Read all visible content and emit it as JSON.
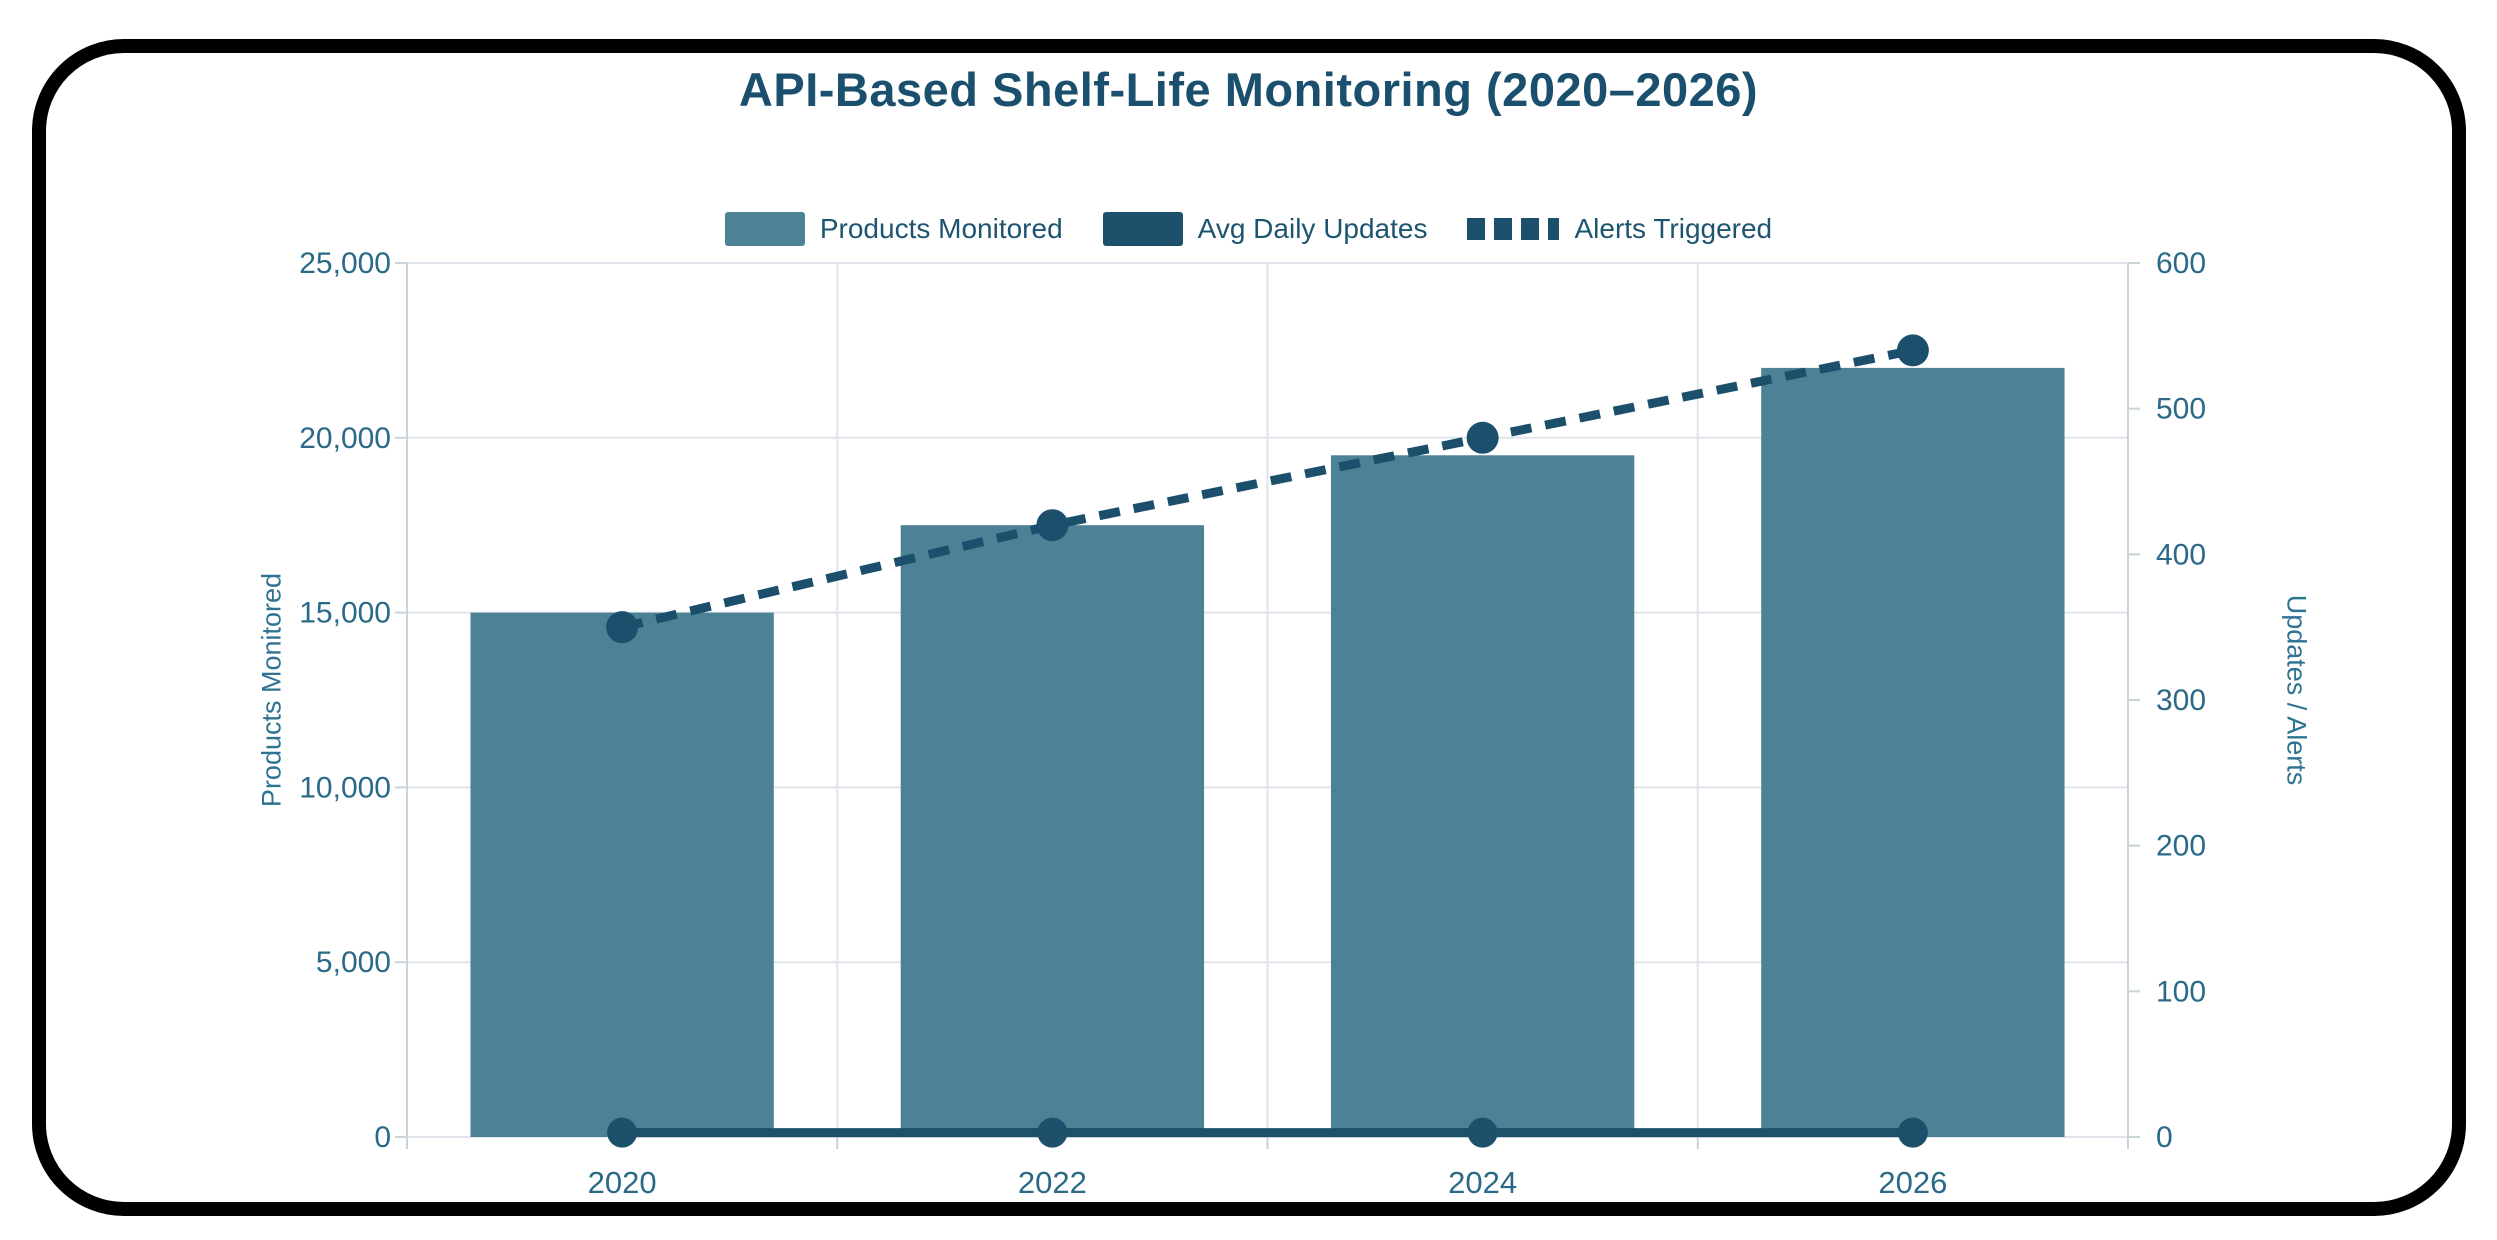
{
  "chart_data": {
    "type": "combo-bar-line",
    "title": "API-Based Shelf-Life Monitoring (2020–2026)",
    "categories": [
      "2020",
      "2022",
      "2024",
      "2026"
    ],
    "series": [
      {
        "name": "Products Monitored",
        "type": "bar",
        "axis": "left",
        "style": "solid",
        "color": "#4d8296",
        "values": [
          15000,
          17500,
          19500,
          22000
        ]
      },
      {
        "name": "Avg Daily Updates",
        "type": "line",
        "axis": "right",
        "style": "solid",
        "color": "#1c506b",
        "values": [
          3,
          3,
          3,
          3
        ]
      },
      {
        "name": "Alerts Triggered",
        "type": "line",
        "axis": "right",
        "style": "dashed",
        "color": "#1b4f6b",
        "values": [
          350,
          420,
          480,
          540
        ]
      }
    ],
    "left_axis": {
      "title": "Products Monitored",
      "min": 0,
      "max": 25000,
      "tick_values": [
        0,
        5000,
        10000,
        15000,
        20000,
        25000
      ],
      "tick_labels": [
        "0",
        "5,000",
        "10,000",
        "15,000",
        "20,000",
        "25,000"
      ]
    },
    "right_axis": {
      "title": "Updates / Alerts",
      "min": 0,
      "max": 600,
      "tick_values": [
        0,
        100,
        200,
        300,
        400,
        500,
        600
      ],
      "tick_labels": [
        "0",
        "100",
        "200",
        "300",
        "400",
        "500",
        "600"
      ]
    },
    "legend_position": "top",
    "grid": true
  },
  "colors": {
    "background": "#ffffff",
    "frame": "#000000",
    "title_text": "#1a4f6e",
    "legend_text": "#1d5570",
    "axis_text": "#2a6a88",
    "axis_title_text": "#2f7392",
    "grid_line": "#dfe5ea",
    "axis_line": "#c9d3da"
  }
}
